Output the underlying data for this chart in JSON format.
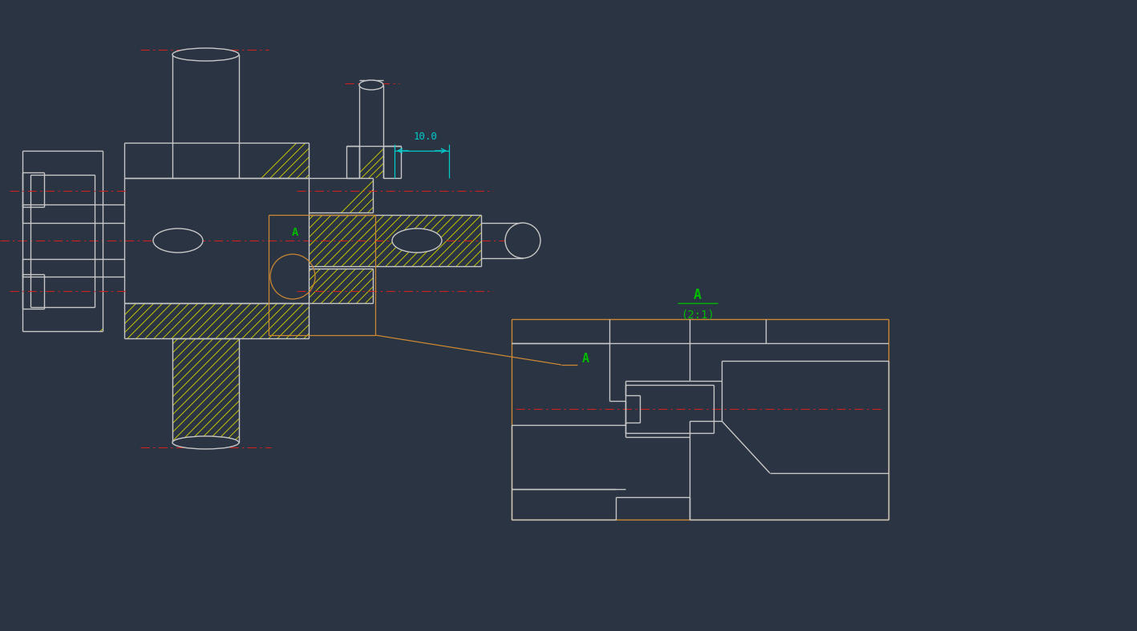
{
  "bg_color": "#2b3442",
  "W": "#c8c8c8",
  "Y": "#c8c800",
  "R": "#cc2222",
  "C": "#00cccc",
  "G": "#00bb00",
  "O": "#cc8833",
  "dim_text": "10.0",
  "label_A": "A",
  "detail_title": "A",
  "detail_scale": "(2:1)"
}
